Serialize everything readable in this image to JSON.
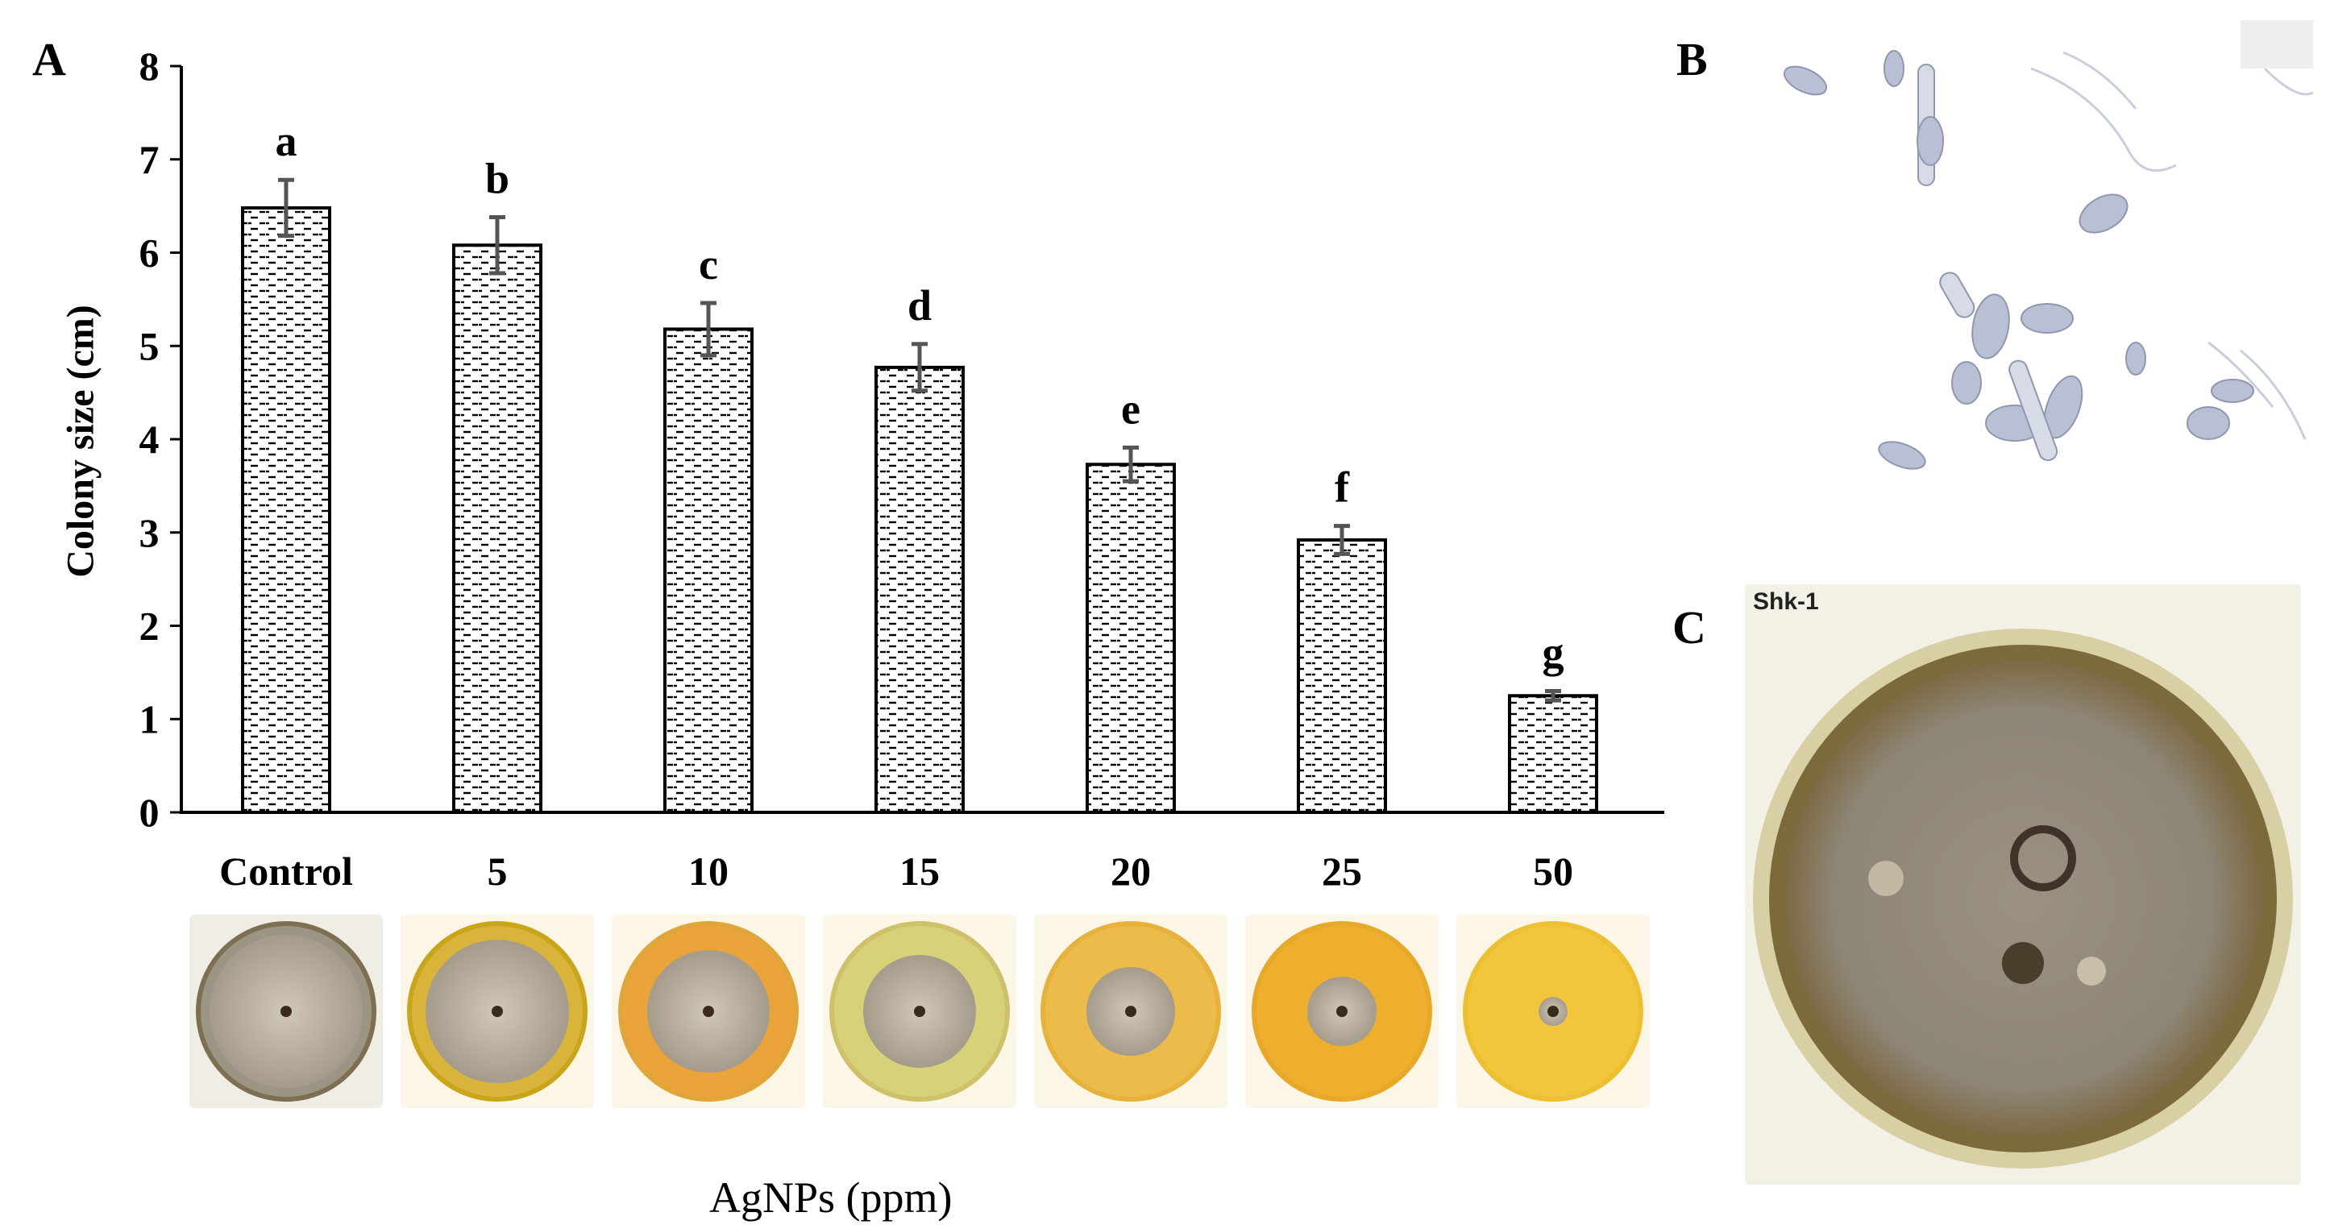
{
  "panels": {
    "a": "A",
    "b": "B",
    "c": "C"
  },
  "chart_data": {
    "type": "bar",
    "categories": [
      "Control",
      "5",
      "10",
      "15",
      "20",
      "25",
      "50"
    ],
    "values": [
      6.48,
      6.08,
      5.18,
      4.77,
      3.73,
      2.92,
      1.25
    ],
    "errors": [
      0.3,
      0.3,
      0.28,
      0.25,
      0.18,
      0.15,
      0.05
    ],
    "significance_letters": [
      "a",
      "b",
      "c",
      "d",
      "e",
      "f",
      "g"
    ],
    "ylabel": "Colony size (cm)",
    "xlabel": "AgNPs (ppm)",
    "ylim": [
      0,
      8
    ],
    "yticks": [
      0,
      1,
      2,
      3,
      4,
      5,
      6,
      7,
      8
    ]
  },
  "plate_caption": "Shk-1",
  "colors": {
    "bar_fill": "#ffffff",
    "bar_pattern": "#000000",
    "error_bar": "#555555",
    "plate_yellow": "#e8b43a",
    "colony_gray": "#9a8f80"
  }
}
